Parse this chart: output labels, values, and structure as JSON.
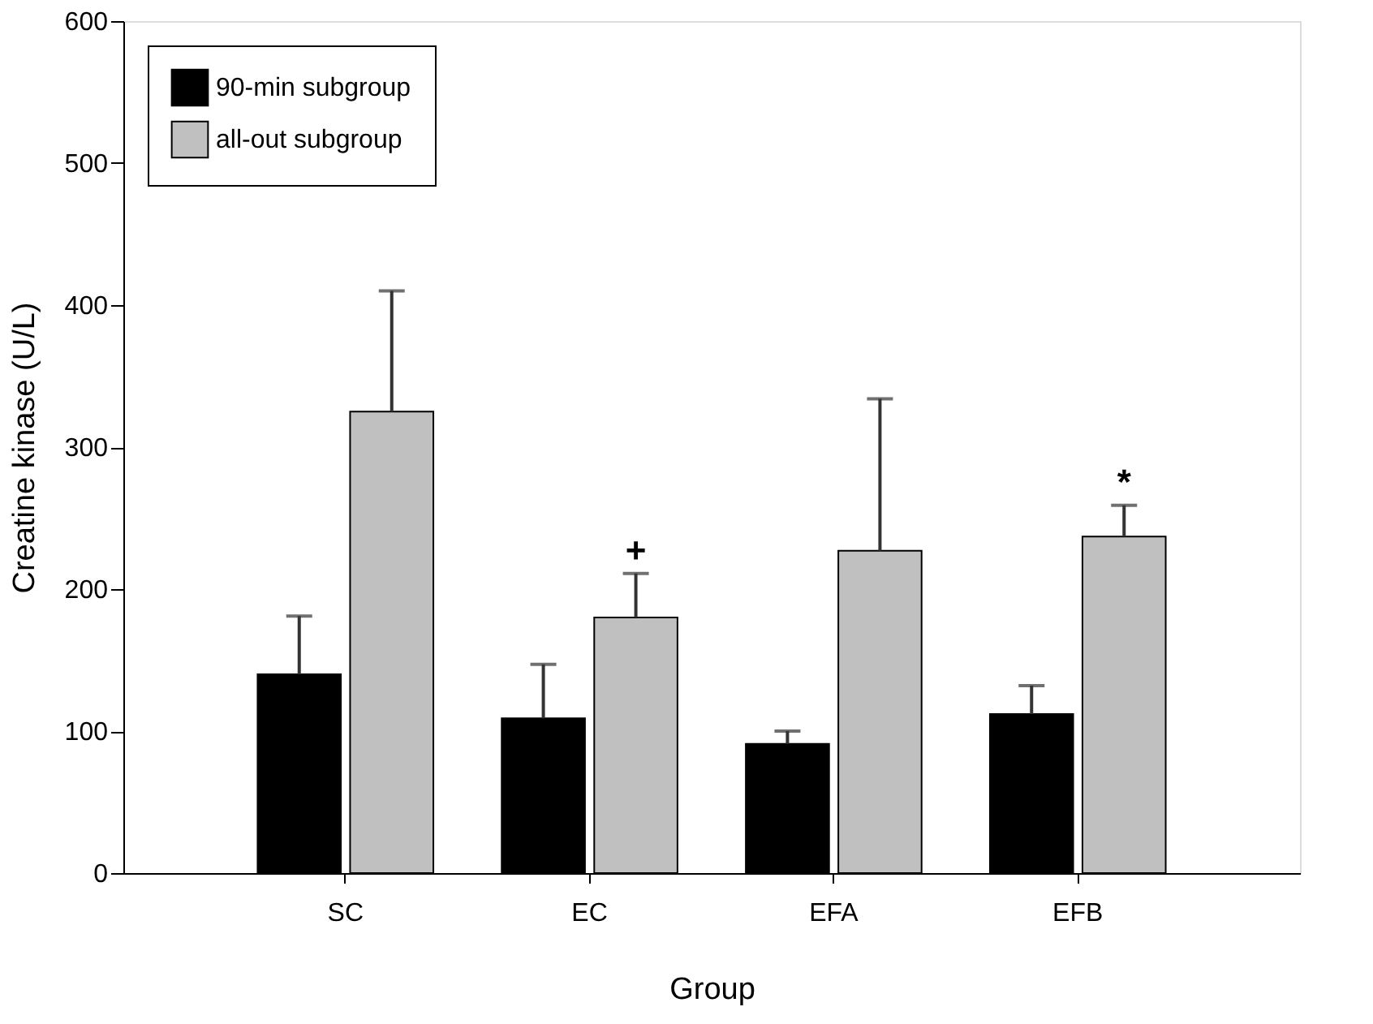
{
  "chart_data": {
    "type": "bar",
    "xlabel": "Group",
    "ylabel": "Creatine kinase (U/L)",
    "categories": [
      "SC",
      "EC",
      "EFA",
      "EFB"
    ],
    "series": [
      {
        "name": "90-min subgroup",
        "color": "#000000",
        "values": [
          140,
          109,
          91,
          112
        ],
        "errors": [
          [
            140,
            181
          ],
          [
            109,
            147
          ],
          [
            91,
            100
          ],
          [
            112,
            132
          ]
        ]
      },
      {
        "name": "all-out  subgroup",
        "color": "#c0c0c0",
        "values": [
          325,
          180,
          227,
          237
        ],
        "errors": [
          [
            325,
            410
          ],
          [
            180,
            211
          ],
          [
            227,
            334
          ],
          [
            237,
            259
          ]
        ],
        "value_labels": [
          null,
          "+",
          null,
          "*"
        ]
      }
    ],
    "ylim": [
      0,
      600
    ],
    "yticks": [
      0,
      100,
      200,
      300,
      400,
      500,
      600
    ],
    "grid": false,
    "legend": "top left"
  }
}
